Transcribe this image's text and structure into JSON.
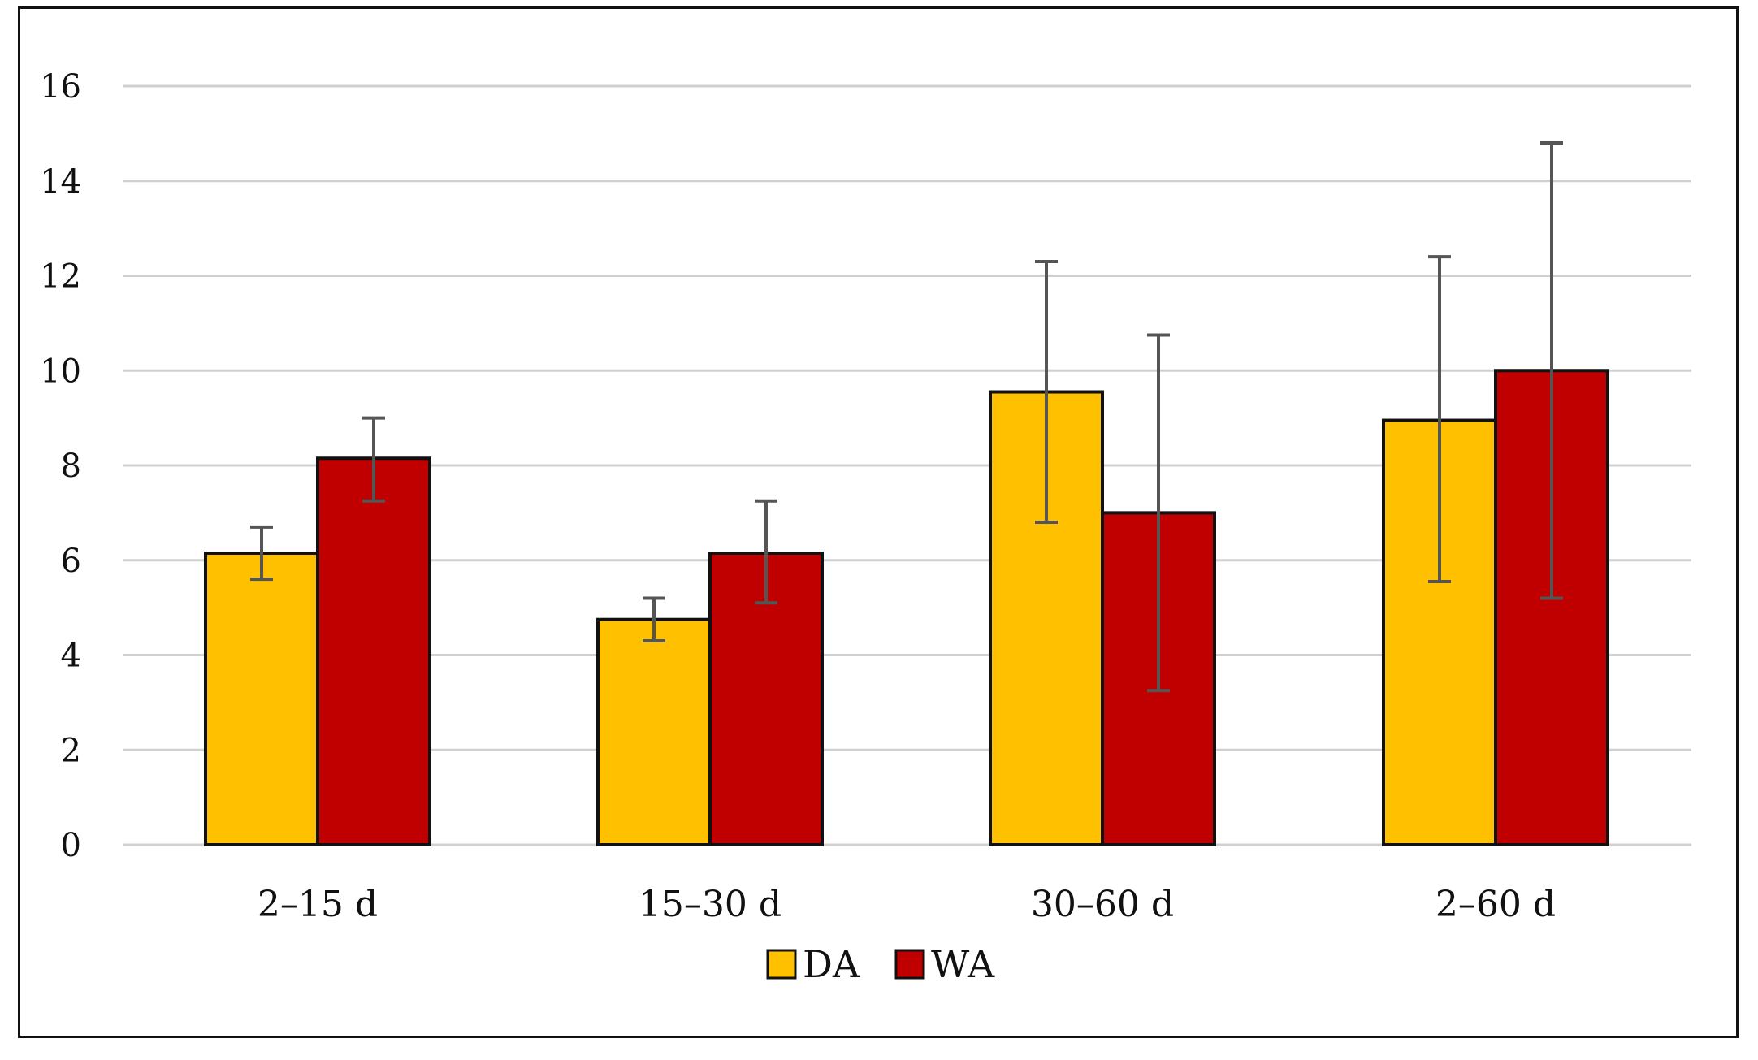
{
  "chart_data": {
    "type": "bar",
    "title": "",
    "xlabel": "",
    "ylabel": "",
    "ylim": [
      0,
      16
    ],
    "yticks": [
      0,
      2,
      4,
      6,
      8,
      10,
      12,
      14,
      16
    ],
    "grid": true,
    "legend_position": "bottom-center",
    "categories": [
      "2–15 d",
      "15–30 d",
      "30–60 d",
      "2–60 d"
    ],
    "series": [
      {
        "name": "DA",
        "color": "#ffc000",
        "values": [
          6.15,
          4.75,
          9.55,
          8.95
        ],
        "error_low": [
          5.6,
          4.3,
          6.8,
          5.55
        ],
        "error_high": [
          6.7,
          5.2,
          12.3,
          12.4
        ]
      },
      {
        "name": "WA",
        "color": "#c00000",
        "values": [
          8.15,
          6.15,
          7.0,
          10.0
        ],
        "error_low": [
          7.25,
          5.1,
          3.25,
          5.2
        ],
        "error_high": [
          9.0,
          7.25,
          10.75,
          14.8
        ]
      }
    ]
  }
}
